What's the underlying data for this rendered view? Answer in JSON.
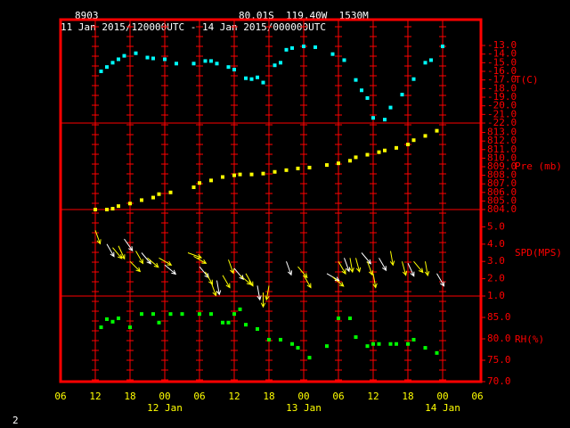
{
  "header": {
    "station": "8903",
    "location": "80.01S  119.40W  1530M",
    "period": "11 Jan 2015/120000UTC - 14 Jan 2015/000000UTC"
  },
  "page_number": "2",
  "x_axis": {
    "xlim": [
      6,
      78
    ],
    "xticks": [
      {
        "value": 6,
        "label": "06"
      },
      {
        "value": 12,
        "label": "12"
      },
      {
        "value": 18,
        "label": "18"
      },
      {
        "value": 24,
        "label": "00"
      },
      {
        "value": 30,
        "label": "06"
      },
      {
        "value": 36,
        "label": "12"
      },
      {
        "value": 42,
        "label": "18"
      },
      {
        "value": 48,
        "label": "00"
      },
      {
        "value": 54,
        "label": "06"
      },
      {
        "value": 60,
        "label": "12"
      },
      {
        "value": 66,
        "label": "18"
      },
      {
        "value": 72,
        "label": "00"
      },
      {
        "value": 78,
        "label": "06"
      }
    ],
    "date_labels": [
      {
        "value": 24,
        "label": "12 Jan"
      },
      {
        "value": 48,
        "label": "13 Jan"
      },
      {
        "value": 72,
        "label": "14 Jan"
      }
    ]
  },
  "chart_data": [
    {
      "type": "scatter",
      "ylabel": "T(C)",
      "color": "#00ffff",
      "ylim": [
        -22,
        -10
      ],
      "yticks": [
        {
          "value": -13,
          "label": "-13.0"
        },
        {
          "value": -14,
          "label": "-14.0"
        },
        {
          "value": -15,
          "label": "-15.0"
        },
        {
          "value": -16,
          "label": "-16.0"
        },
        {
          "value": -17,
          "label": "-17.0"
        },
        {
          "value": -18,
          "label": "-18.0"
        },
        {
          "value": -19,
          "label": "-19.0"
        },
        {
          "value": -20,
          "label": "-20.0"
        },
        {
          "value": -21,
          "label": "-21.0"
        },
        {
          "value": -22,
          "label": "-22.0"
        }
      ],
      "x": [
        13,
        14,
        15,
        16,
        17,
        19,
        21,
        22,
        24,
        26,
        29,
        31,
        32,
        33,
        35,
        36,
        38,
        39,
        40,
        41,
        43,
        44,
        45,
        46,
        48,
        50,
        53,
        55,
        57,
        58,
        59,
        60,
        62,
        63,
        65,
        67,
        69,
        70,
        72
      ],
      "values": [
        -16.0,
        -15.5,
        -15.0,
        -14.6,
        -14.2,
        -13.9,
        -14.4,
        -14.5,
        -14.6,
        -15.1,
        -15.1,
        -14.8,
        -14.8,
        -15.1,
        -15.5,
        -15.8,
        -16.8,
        -16.9,
        -16.7,
        -17.3,
        -15.3,
        -15.0,
        -13.5,
        -13.3,
        -13.1,
        -13.2,
        -14.0,
        -14.7,
        -17.0,
        -18.2,
        -19.1,
        -21.4,
        -21.6,
        -20.2,
        -18.7,
        -16.9,
        -15.0,
        -14.7,
        -13.1
      ]
    },
    {
      "type": "scatter",
      "ylabel": "Pre (mb)",
      "color": "#ffff00",
      "ylim": [
        804,
        814.1
      ],
      "yticks": [
        {
          "value": 804,
          "label": "804.0"
        },
        {
          "value": 805,
          "label": "805.0"
        },
        {
          "value": 806,
          "label": "806.0"
        },
        {
          "value": 807,
          "label": "807.0"
        },
        {
          "value": 808,
          "label": "808.0"
        },
        {
          "value": 809,
          "label": "809.0"
        },
        {
          "value": 810,
          "label": "810.0"
        },
        {
          "value": 811,
          "label": "811.0"
        },
        {
          "value": 812,
          "label": "812.0"
        },
        {
          "value": 813,
          "label": "813.0"
        }
      ],
      "x": [
        12,
        14,
        15,
        16,
        18,
        20,
        22,
        23,
        25,
        29,
        30,
        32,
        34,
        36,
        37,
        39,
        41,
        43,
        45,
        47,
        49,
        52,
        54,
        56,
        57,
        59,
        61,
        62,
        64,
        66,
        67,
        69,
        71
      ],
      "values": [
        804.0,
        804.0,
        804.1,
        804.4,
        804.7,
        805.1,
        805.4,
        805.8,
        806.0,
        806.6,
        807.1,
        807.4,
        807.8,
        808.0,
        808.1,
        808.1,
        808.2,
        808.4,
        808.6,
        808.8,
        808.9,
        809.2,
        809.4,
        809.7,
        810.1,
        810.4,
        810.7,
        810.9,
        811.2,
        811.6,
        812.1,
        812.6,
        813.2
      ]
    },
    {
      "type": "vector",
      "ylabel": "SPD(MPS)",
      "color": "#ffff00",
      "ylim": [
        1,
        6
      ],
      "yticks": [
        {
          "value": 1,
          "label": "1.0"
        },
        {
          "value": 2,
          "label": "2.0"
        },
        {
          "value": 3,
          "label": "3.0"
        },
        {
          "value": 4,
          "label": "4.0"
        },
        {
          "value": 5,
          "label": "5.0"
        }
      ],
      "x": [
        12,
        14,
        15,
        16,
        17,
        18,
        19,
        20,
        21,
        23,
        24,
        28,
        29,
        30,
        31,
        32,
        33,
        34,
        35,
        36,
        37,
        38,
        40,
        41,
        42,
        45,
        47,
        48,
        52,
        53,
        54,
        55,
        56,
        57,
        58,
        59,
        60,
        61,
        63,
        65,
        66,
        67,
        69,
        71
      ],
      "values": [
        4.8,
        4.0,
        3.8,
        3.9,
        4.3,
        3.0,
        3.6,
        3.5,
        3.2,
        3.2,
        2.8,
        3.5,
        3.3,
        2.7,
        2.4,
        1.8,
        1.9,
        2.2,
        3.1,
        2.6,
        2.2,
        2.3,
        1.6,
        1.2,
        1.6,
        3.0,
        2.7,
        2.2,
        2.3,
        2.1,
        3.0,
        3.2,
        3.2,
        3.2,
        3.5,
        3.0,
        2.3,
        3.2,
        3.6,
        3.0,
        2.9,
        3.0,
        3.0,
        2.3
      ],
      "directions": [
        340,
        330,
        320,
        335,
        325,
        315,
        330,
        320,
        310,
        300,
        310,
        290,
        300,
        320,
        330,
        340,
        350,
        330,
        340,
        320,
        310,
        330,
        350,
        0,
        10,
        340,
        320,
        330,
        300,
        310,
        330,
        340,
        350,
        345,
        320,
        340,
        350,
        330,
        350,
        345,
        335,
        320,
        350,
        330
      ]
    },
    {
      "type": "scatter",
      "ylabel": "RH(%)",
      "color": "#00ff00",
      "ylim": [
        70,
        90
      ],
      "yticks": [
        {
          "value": 70,
          "label": "70.0"
        },
        {
          "value": 75,
          "label": "75.0"
        },
        {
          "value": 80,
          "label": "80.0"
        },
        {
          "value": 85,
          "label": "85.0"
        }
      ],
      "x": [
        13,
        14,
        15,
        16,
        18,
        20,
        22,
        23,
        25,
        27,
        30,
        32,
        34,
        35,
        36,
        37,
        38,
        40,
        42,
        44,
        46,
        47,
        49,
        52,
        54,
        56,
        57,
        59,
        60,
        61,
        63,
        64,
        66,
        67,
        69,
        71
      ],
      "values": [
        82.7,
        84.6,
        84.0,
        84.8,
        82.7,
        85.8,
        85.8,
        83.8,
        85.8,
        85.8,
        85.8,
        85.8,
        83.8,
        83.8,
        85.8,
        86.9,
        83.3,
        82.3,
        79.8,
        79.8,
        78.8,
        77.9,
        75.6,
        78.3,
        84.8,
        84.8,
        80.4,
        78.3,
        78.8,
        78.8,
        78.8,
        78.8,
        78.8,
        79.8,
        77.9,
        76.7
      ]
    }
  ]
}
